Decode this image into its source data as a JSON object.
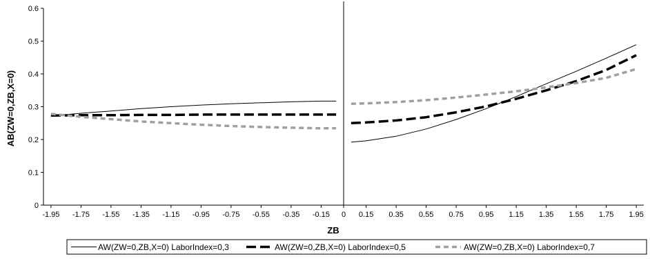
{
  "chart_data": {
    "type": "line",
    "xlabel": "ZB",
    "ylabel": "AB(ZW=0,ZB,X=0)",
    "ylim": [
      0,
      0.6
    ],
    "xlim": [
      -2.0,
      2.0
    ],
    "x_ticks": [
      "-1.95",
      "-1.75",
      "-1.55",
      "-1.35",
      "-1.15",
      "-0.95",
      "-0.75",
      "-0.55",
      "-0.35",
      "-0.15",
      "0",
      "0.15",
      "0.35",
      "0.55",
      "0.75",
      "0.95",
      "1.15",
      "1.35",
      "1.55",
      "1.75",
      "1.95"
    ],
    "y_ticks": [
      "0",
      "0.1",
      "0.2",
      "0.3",
      "0.4",
      "0.5",
      "0.6"
    ],
    "grid": false,
    "legend_position": "bottom",
    "series": [
      {
        "name": "AW(ZW=0,ZB,X=0) LaborIndex=0,3",
        "color": "#000000",
        "style": "solid-thin",
        "segments": [
          {
            "x": [
              -1.95,
              -1.75,
              -1.55,
              -1.35,
              -1.15,
              -0.95,
              -0.75,
              -0.55,
              -0.35,
              -0.15,
              -0.05
            ],
            "y": [
              0.272,
              0.28,
              0.287,
              0.294,
              0.3,
              0.305,
              0.309,
              0.312,
              0.315,
              0.317,
              0.317
            ]
          },
          {
            "x": [
              0.05,
              0.15,
              0.35,
              0.55,
              0.75,
              0.95,
              1.15,
              1.35,
              1.55,
              1.75,
              1.95
            ],
            "y": [
              0.192,
              0.196,
              0.21,
              0.232,
              0.261,
              0.294,
              0.331,
              0.37,
              0.408,
              0.448,
              0.489
            ]
          }
        ]
      },
      {
        "name": "AW(ZW=0,ZB,X=0) LaborIndex=0,5",
        "color": "#000000",
        "style": "dashed-thick",
        "segments": [
          {
            "x": [
              -1.95,
              -1.75,
              -1.55,
              -1.35,
              -1.15,
              -0.95,
              -0.75,
              -0.55,
              -0.35,
              -0.15,
              -0.05
            ],
            "y": [
              0.273,
              0.274,
              0.274,
              0.275,
              0.275,
              0.276,
              0.276,
              0.276,
              0.276,
              0.276,
              0.276
            ]
          },
          {
            "x": [
              0.05,
              0.15,
              0.35,
              0.55,
              0.75,
              0.95,
              1.15,
              1.35,
              1.55,
              1.75,
              1.95
            ],
            "y": [
              0.25,
              0.252,
              0.258,
              0.268,
              0.283,
              0.301,
              0.324,
              0.35,
              0.378,
              0.412,
              0.457
            ]
          }
        ]
      },
      {
        "name": "AW(ZW=0,ZB,X=0) LaborIndex=0,7",
        "color": "#a0a0a0",
        "style": "dashed-thick",
        "segments": [
          {
            "x": [
              -1.95,
              -1.75,
              -1.55,
              -1.35,
              -1.15,
              -0.95,
              -0.75,
              -0.55,
              -0.35,
              -0.15,
              -0.05
            ],
            "y": [
              0.278,
              0.269,
              0.262,
              0.255,
              0.25,
              0.245,
              0.241,
              0.238,
              0.236,
              0.234,
              0.234
            ]
          },
          {
            "x": [
              0.05,
              0.15,
              0.35,
              0.55,
              0.75,
              0.95,
              1.15,
              1.35,
              1.55,
              1.75,
              1.95
            ],
            "y": [
              0.309,
              0.31,
              0.314,
              0.32,
              0.328,
              0.337,
              0.347,
              0.359,
              0.372,
              0.388,
              0.415
            ]
          }
        ]
      }
    ]
  }
}
